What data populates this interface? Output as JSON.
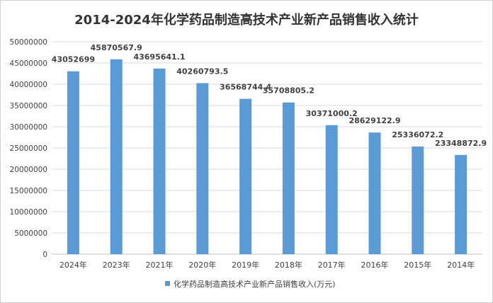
{
  "chart_data": {
    "type": "bar",
    "title": "2014-2024年化学药品制造高技术产业新产品销售收入统计",
    "categories": [
      "2024年",
      "2023年",
      "2021年",
      "2020年",
      "2019年",
      "2018年",
      "2017年",
      "2016年",
      "2015年",
      "2014年"
    ],
    "series": [
      {
        "name": "化学药品制造高技术产业新产品销售收入(万元)",
        "values": [
          43052699,
          45870567.9,
          43695641.1,
          40260793.5,
          36568744.4,
          35708805.2,
          30371000.2,
          28629122.9,
          25336072.2,
          23348872.9
        ],
        "data_labels": [
          "43052699",
          "45870567.9",
          "43695641.1",
          "40260793.5",
          "36568744.4",
          "35708805.2",
          "30371000.2",
          "28629122.9",
          "25336072.2",
          "23348872.9"
        ]
      }
    ],
    "yticks": [
      "0",
      "5000000",
      "10000000",
      "15000000",
      "20000000",
      "25000000",
      "30000000",
      "35000000",
      "40000000",
      "45000000",
      "50000000"
    ],
    "ylim": [
      0,
      50000000
    ],
    "grid": true,
    "legend_position": "bottom",
    "colors": {
      "bar": "#5b9bd5",
      "grid": "#d9d9d9"
    }
  }
}
